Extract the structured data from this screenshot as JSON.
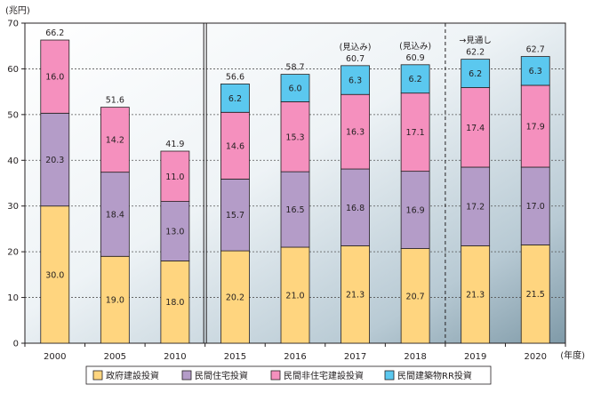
{
  "chart_data": {
    "type": "bar",
    "stacked": true,
    "y_unit_label": "(兆円)",
    "x_unit_label": "(年度)",
    "ylim": [
      0,
      70
    ],
    "yticks": [
      0,
      10,
      20,
      30,
      40,
      50,
      60,
      70
    ],
    "grid": true,
    "legend_position": "bottom",
    "categories": [
      "2000",
      "2005",
      "2010",
      "2015",
      "2016",
      "2017",
      "2018",
      "2019",
      "2020"
    ],
    "series": [
      {
        "name": "政府建設投資",
        "color": "#ffd57f",
        "values": [
          30.0,
          19.0,
          18.0,
          20.2,
          21.0,
          21.3,
          20.7,
          21.3,
          21.5
        ],
        "labels": [
          "30.0",
          "19.0",
          "18.0",
          "20.2",
          "21.0",
          "21.3",
          "20.7",
          "21.3",
          "21.5"
        ]
      },
      {
        "name": "民間住宅投資",
        "color": "#b49cc8",
        "values": [
          20.3,
          18.4,
          13.0,
          15.7,
          16.5,
          16.8,
          16.9,
          17.2,
          17.0
        ],
        "labels": [
          "20.3",
          "18.4",
          "13.0",
          "15.7",
          "16.5",
          "16.8",
          "16.9",
          "17.2",
          "17.0"
        ]
      },
      {
        "name": "民間非住宅建設投資",
        "color": "#f590be",
        "values": [
          16.0,
          14.2,
          11.0,
          14.6,
          15.3,
          16.3,
          17.1,
          17.4,
          17.9
        ],
        "labels": [
          "16.0",
          "14.2",
          "11.0",
          "14.6",
          "15.3",
          "16.3",
          "17.1",
          "17.4",
          "17.9"
        ]
      },
      {
        "name": "民間建築物RR投資",
        "color": "#5bc8ef",
        "values": [
          0,
          0,
          0,
          6.2,
          6.0,
          6.3,
          6.2,
          6.2,
          6.3
        ],
        "labels": [
          "",
          "",
          "",
          "6.2",
          "6.0",
          "6.3",
          "6.2",
          "6.2",
          "6.3"
        ]
      }
    ],
    "totals": [
      "66.2",
      "51.6",
      "41.9",
      "56.6",
      "58.7",
      "60.7",
      "60.9",
      "62.2",
      "62.7"
    ],
    "annotations": [
      {
        "category": "2017",
        "text": "(見込み)"
      },
      {
        "category": "2018",
        "text": "(見込み)"
      },
      {
        "category": "2019",
        "text": "→見通し"
      }
    ]
  }
}
